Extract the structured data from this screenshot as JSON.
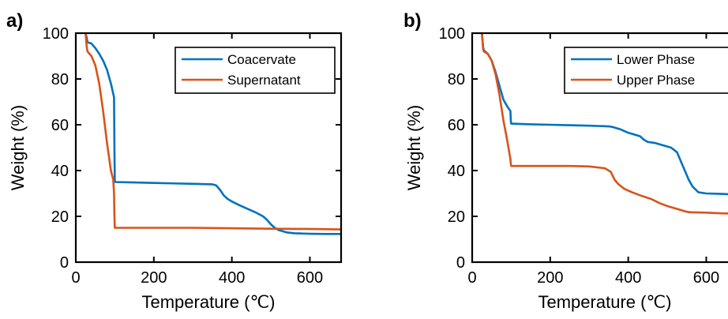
{
  "chart_data": [
    {
      "type": "line",
      "panel_label": "a)",
      "xlabel": "Temperature (℃)",
      "ylabel": "Weight (%)",
      "xlim": [
        0,
        680
      ],
      "ylim": [
        0,
        100
      ],
      "xticks": [
        0,
        200,
        400,
        600
      ],
      "yticks": [
        0,
        20,
        40,
        60,
        80,
        100
      ],
      "grid": false,
      "legend_position": "top-right",
      "series": [
        {
          "name": "Coacervate",
          "color": "#0072BD",
          "x": [
            25,
            28,
            30,
            40,
            50,
            60,
            70,
            80,
            90,
            98,
            99,
            100,
            150,
            200,
            250,
            300,
            350,
            360,
            370,
            380,
            390,
            400,
            420,
            440,
            460,
            480,
            490,
            500,
            510,
            520,
            540,
            560,
            580,
            600,
            640,
            680
          ],
          "y": [
            100,
            98,
            96,
            95.5,
            93.5,
            91,
            88,
            84,
            78,
            72,
            50,
            35,
            34.8,
            34.6,
            34.4,
            34.2,
            34,
            33.5,
            31.5,
            29,
            27.5,
            26.5,
            24.8,
            23.3,
            21.8,
            20,
            18.5,
            16.5,
            15,
            14,
            13,
            12.6,
            12.5,
            12.4,
            12.3,
            12.3
          ]
        },
        {
          "name": "Supernatant",
          "color": "#D95319",
          "x": [
            25,
            28,
            30,
            40,
            50,
            60,
            70,
            80,
            90,
            96,
            98,
            99,
            100,
            150,
            200,
            300,
            400,
            500,
            600,
            680
          ],
          "y": [
            100,
            94,
            92,
            90,
            86,
            78,
            66,
            52,
            40,
            36,
            30,
            20,
            15,
            15,
            15,
            15,
            14.8,
            14.6,
            14.5,
            14.3
          ]
        }
      ]
    },
    {
      "type": "line",
      "panel_label": "b)",
      "xlabel": "Temperature (℃)",
      "ylabel": "Weight (%)",
      "xlim": [
        0,
        680
      ],
      "ylim": [
        0,
        100
      ],
      "xticks": [
        0,
        200,
        400,
        600
      ],
      "yticks": [
        0,
        20,
        40,
        60,
        80,
        100
      ],
      "grid": false,
      "legend_position": "top-right",
      "series": [
        {
          "name": "Lower Phase",
          "color": "#0072BD",
          "x": [
            25,
            28,
            30,
            40,
            50,
            60,
            70,
            80,
            90,
            98,
            99,
            100,
            150,
            200,
            250,
            300,
            350,
            360,
            380,
            400,
            420,
            430,
            440,
            450,
            470,
            490,
            510,
            525,
            535,
            545,
            555,
            565,
            580,
            600,
            640,
            680
          ],
          "y": [
            100,
            94,
            92.5,
            91,
            88,
            83,
            77,
            71,
            68,
            66,
            62,
            60.5,
            60.2,
            60,
            59.8,
            59.6,
            59.3,
            59,
            58,
            56.5,
            55.5,
            55,
            53.5,
            52.5,
            52,
            51,
            50,
            48,
            44,
            40,
            36,
            33,
            30.5,
            30,
            29.8,
            29.5
          ]
        },
        {
          "name": "Upper Phase",
          "color": "#D95319",
          "x": [
            25,
            28,
            30,
            40,
            50,
            60,
            70,
            80,
            90,
            95,
            98,
            99,
            100,
            150,
            200,
            250,
            300,
            340,
            355,
            365,
            375,
            390,
            410,
            430,
            460,
            480,
            500,
            530,
            550,
            560,
            580,
            600,
            640,
            680
          ],
          "y": [
            100,
            93,
            92,
            91,
            88,
            82,
            73,
            62,
            53,
            48,
            45,
            43,
            42,
            42,
            42,
            42,
            41.8,
            41,
            39.5,
            36,
            34,
            32,
            30.5,
            29.2,
            27.5,
            25.8,
            24.5,
            23,
            22,
            21.8,
            21.7,
            21.6,
            21.3,
            21.2
          ]
        }
      ]
    }
  ]
}
